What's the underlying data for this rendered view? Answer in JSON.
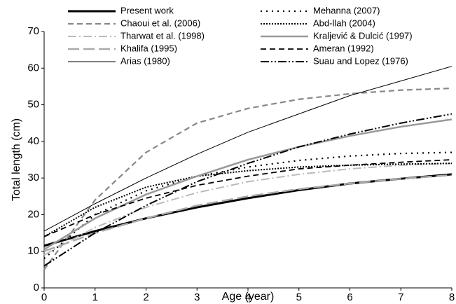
{
  "chart_data": {
    "type": "line",
    "x_label": "Age (year)",
    "y_label": "Total length (cm)",
    "x": [
      0,
      1,
      2,
      3,
      4,
      5,
      6,
      7,
      8
    ],
    "xlim": [
      0,
      8
    ],
    "xticks": [
      0,
      1,
      2,
      3,
      4,
      5,
      6,
      7,
      8
    ],
    "ylim": [
      0,
      70
    ],
    "yticks": [
      0,
      10,
      20,
      30,
      40,
      50,
      60,
      70
    ],
    "grid": false,
    "legend": "top",
    "series": [
      {
        "name": "Present work",
        "color": "#000000",
        "style": "solid",
        "linewidth": 3,
        "values": [
          11.5,
          15.5,
          19,
          22,
          24.5,
          26.7,
          28.5,
          29.8,
          31
        ]
      },
      {
        "name": "Chaoui et al. (2006)",
        "color": "#888888",
        "style": "dashed",
        "linewidth": 2.2,
        "values": [
          5,
          24,
          37,
          45,
          49,
          51.5,
          53,
          54,
          54.5
        ]
      },
      {
        "name": "Tharwat et al. (1998)",
        "color": "#bbbbbb",
        "style": "dashdot",
        "linewidth": 2,
        "values": [
          9,
          16.5,
          22,
          26,
          29,
          31,
          32.5,
          33.5,
          34
        ]
      },
      {
        "name": "Khalifa (1995)",
        "color": "#aaaaaa",
        "style": "longdash",
        "linewidth": 2.5,
        "values": [
          10,
          15,
          19,
          22.5,
          25,
          27,
          28.5,
          29.8,
          30.8
        ]
      },
      {
        "name": "Arias (1980)",
        "color": "#000000",
        "style": "solid",
        "linewidth": 1,
        "values": [
          15.5,
          23,
          30,
          36.5,
          42.5,
          47.5,
          52.5,
          56.5,
          60.5
        ]
      },
      {
        "name": "Mehanna (2007)",
        "color": "#000000",
        "style": "dotted",
        "linewidth": 2.2,
        "values": [
          8,
          20,
          26.5,
          30.5,
          33,
          34.8,
          36,
          36.7,
          37
        ]
      },
      {
        "name": "Abd-llah (2004)",
        "color": "#000000",
        "style": "densedot",
        "linewidth": 2,
        "values": [
          14,
          22,
          27.5,
          30.5,
          32,
          33,
          33.5,
          33.8,
          34
        ]
      },
      {
        "name": "Kraljević & Dulcić (1997)",
        "color": "#999999",
        "style": "solid",
        "linewidth": 2.5,
        "values": [
          10.5,
          19,
          25.5,
          30.5,
          35,
          38.5,
          41.5,
          44,
          46
        ]
      },
      {
        "name": "Ameran (1992)",
        "color": "#000000",
        "style": "dashed",
        "linewidth": 1.8,
        "values": [
          14,
          20,
          24.5,
          28,
          30.5,
          32.5,
          33.5,
          34.3,
          35
        ]
      },
      {
        "name": "Suau and Lopez (1976)",
        "color": "#000000",
        "style": "dashdotdot",
        "linewidth": 2,
        "values": [
          6,
          15,
          22.5,
          29,
          34,
          38.5,
          42,
          45,
          47.5
        ]
      }
    ]
  }
}
